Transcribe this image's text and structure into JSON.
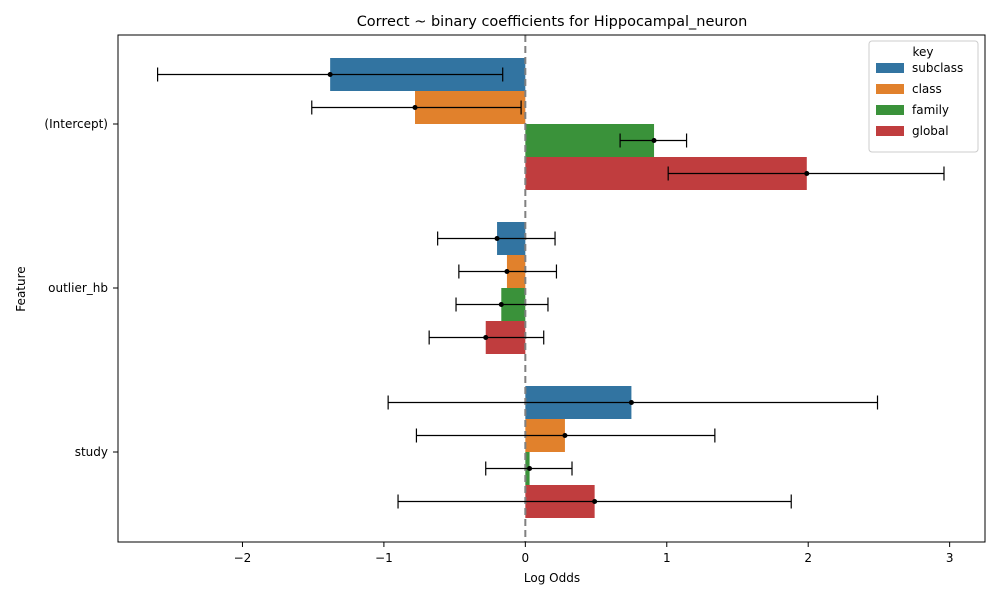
{
  "chart_data": {
    "type": "bar",
    "orientation": "horizontal",
    "title": "Correct ~ binary coefficients for Hippocampal_neuron",
    "xlabel": "Log Odds",
    "ylabel": "Feature",
    "xlim": [
      -2.88,
      3.25
    ],
    "xticks": [
      -2,
      -1,
      0,
      1,
      2,
      3
    ],
    "xtick_labels": [
      "−2",
      "−1",
      "0",
      "1",
      "2",
      "3"
    ],
    "categories": [
      "(Intercept)",
      "outlier_hb",
      "study"
    ],
    "reference_line": 0,
    "legend": {
      "title": "key",
      "position": "top-right"
    },
    "series": [
      {
        "name": "subclass",
        "color": "#3274a1",
        "values": [
          -1.38,
          -0.2,
          0.75
        ],
        "err_low": [
          -2.6,
          -0.62,
          -0.97
        ],
        "err_high": [
          -0.16,
          0.21,
          2.49
        ]
      },
      {
        "name": "class",
        "color": "#e1812c",
        "values": [
          -0.78,
          -0.13,
          0.28
        ],
        "err_low": [
          -1.51,
          -0.47,
          -0.77
        ],
        "err_high": [
          -0.03,
          0.22,
          1.34
        ]
      },
      {
        "name": "family",
        "color": "#3a923a",
        "values": [
          0.91,
          -0.17,
          0.03
        ],
        "err_low": [
          0.67,
          -0.49,
          -0.28
        ],
        "err_high": [
          1.14,
          0.16,
          0.33
        ]
      },
      {
        "name": "global",
        "color": "#c03d3e",
        "values": [
          1.99,
          -0.28,
          0.49
        ],
        "err_low": [
          1.01,
          -0.68,
          -0.9
        ],
        "err_high": [
          2.96,
          0.13,
          1.88
        ]
      }
    ]
  }
}
